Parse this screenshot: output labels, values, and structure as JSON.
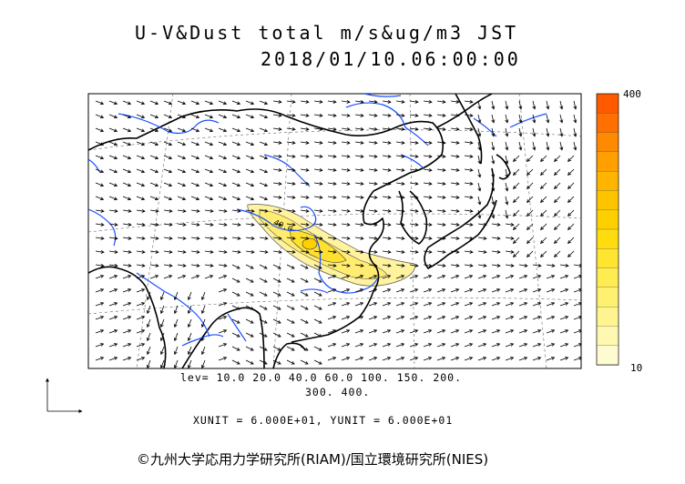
{
  "title": {
    "line1": "U-V&Dust total m/s&ug/m3 JST",
    "line2": "2018/01/10.06:00:00"
  },
  "contour_levels": {
    "line1": "lev= 10.0 20.0 40.0 60.0 100. 150. 200.",
    "line2": "300. 400."
  },
  "units": "XUNIT = 6.000E+01, YUNIT = 6.000E+01",
  "colorbar": {
    "max_label": "400",
    "min_label": "10",
    "colors": [
      "#ff5a00",
      "#ff7000",
      "#ff8a00",
      "#ffa000",
      "#ffb400",
      "#ffc400",
      "#ffd000",
      "#ffdc10",
      "#ffe430",
      "#ffec50",
      "#fff070",
      "#fff490",
      "#fff8b0",
      "#fffbd0"
    ]
  },
  "plume_label": "40.0",
  "copyright": "©九州大学応用力学研究所(RIAM)/国立環境研究所(NIES)",
  "colors": {
    "coast": "#000000",
    "rivers": "#1a4fff",
    "dust_fill": "#fff280",
    "dust_core": "#ffe640",
    "vectors": "#000000"
  },
  "legend_axis_arrows": "reference wind vector axes"
}
